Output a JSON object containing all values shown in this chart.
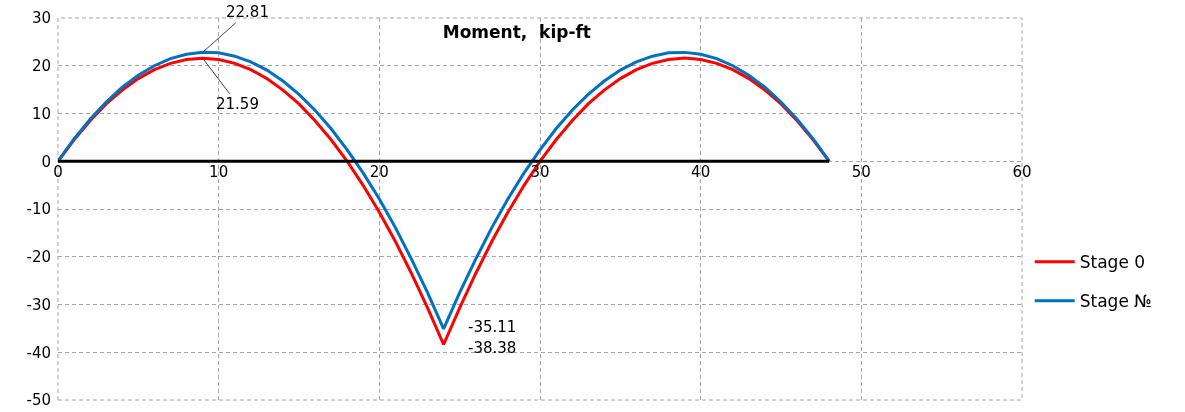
{
  "chart_data": {
    "type": "line",
    "title": "Moment,  kip-ft",
    "x": [
      0,
      1,
      2,
      3,
      4,
      5,
      6,
      7,
      8,
      9,
      10,
      11,
      12,
      13,
      14,
      15,
      16,
      17,
      18,
      19,
      20,
      21,
      22,
      23,
      24,
      25,
      26,
      27,
      28,
      29,
      30,
      31,
      32,
      33,
      34,
      35,
      36,
      37,
      38,
      39,
      40,
      41,
      42,
      43,
      44,
      45,
      46,
      47,
      48
    ],
    "series": [
      {
        "name": "Stage 0",
        "color": "#ff0000",
        "values": [
          0,
          4.5,
          8.5,
          12.0,
          14.9,
          17.3,
          19.2,
          20.5,
          21.3,
          21.59,
          21.3,
          20.5,
          19.2,
          17.3,
          14.9,
          12.0,
          8.5,
          4.5,
          0,
          -5.1,
          -10.7,
          -16.8,
          -23.5,
          -30.7,
          -38.38,
          -30.7,
          -23.5,
          -16.8,
          -10.7,
          -5.1,
          0,
          4.5,
          8.5,
          12.0,
          14.9,
          17.3,
          19.2,
          20.5,
          21.3,
          21.6,
          21.3,
          20.5,
          19.2,
          17.3,
          14.9,
          12.0,
          8.5,
          4.5,
          0
        ],
        "value_labels": [
          null,
          null,
          null,
          null,
          null,
          null,
          null,
          null,
          null,
          "21.59",
          null,
          null,
          null,
          null,
          null,
          null,
          null,
          null,
          null,
          null,
          null,
          null,
          null,
          null,
          "-38.38",
          null,
          null,
          null,
          null,
          null,
          null,
          null,
          null,
          null,
          null,
          null,
          null,
          null,
          null,
          null,
          null,
          null,
          null,
          null,
          null,
          null,
          null,
          null,
          null
        ]
      },
      {
        "name": "Stage №",
        "color": "#0070c0",
        "values": [
          0,
          4.7,
          8.8,
          12.4,
          15.5,
          18.0,
          20.0,
          21.5,
          22.4,
          22.81,
          22.7,
          22.0,
          20.8,
          19.1,
          16.8,
          14.0,
          10.7,
          6.8,
          2.4,
          -2.5,
          -7.9,
          -13.9,
          -20.5,
          -27.5,
          -35.11,
          -27.5,
          -20.5,
          -13.9,
          -7.9,
          -2.5,
          2.4,
          6.8,
          10.7,
          14.0,
          16.8,
          19.1,
          20.8,
          22.0,
          22.7,
          22.8,
          22.4,
          21.5,
          20.0,
          18.0,
          15.5,
          12.4,
          8.8,
          4.7,
          0
        ],
        "value_labels": [
          null,
          null,
          null,
          null,
          null,
          null,
          null,
          null,
          null,
          "22.81",
          null,
          null,
          null,
          null,
          null,
          null,
          null,
          null,
          null,
          null,
          null,
          null,
          null,
          null,
          "-35.11",
          null,
          null,
          null,
          null,
          null,
          null,
          null,
          null,
          null,
          null,
          null,
          null,
          null,
          null,
          null,
          null,
          null,
          null,
          null,
          null,
          null,
          null,
          null,
          null
        ]
      },
      {
        "color": "#000000",
        "x": [
          0,
          48
        ],
        "values": [
          0,
          0
        ]
      }
    ],
    "xlim": [
      0,
      60
    ],
    "xticks": [
      0,
      10,
      20,
      30,
      40,
      50,
      60
    ],
    "ylim": [
      -50,
      30
    ],
    "yticks": [
      -50,
      -40,
      -30,
      -20,
      -10,
      0,
      10,
      20,
      30
    ],
    "grid": true,
    "legend": "right",
    "marker": "none",
    "line_style": "solid"
  }
}
